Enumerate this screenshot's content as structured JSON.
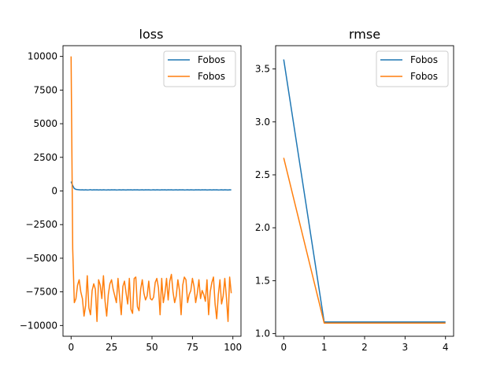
{
  "chart_data": [
    {
      "type": "line",
      "title": "loss",
      "xlabel": "",
      "ylabel": "",
      "xlim": [
        -5,
        105
      ],
      "ylim": [
        -10800,
        10800
      ],
      "xticks": [
        0,
        25,
        50,
        75,
        100
      ],
      "xtick_labels": [
        "0",
        "25",
        "50",
        "75",
        "100"
      ],
      "yticks": [
        -10000,
        -7500,
        -5000,
        -2500,
        0,
        2500,
        5000,
        7500,
        10000
      ],
      "ytick_labels": [
        "−10000",
        "−7500",
        "−5000",
        "−2500",
        "0",
        "2500",
        "5000",
        "7500",
        "10000"
      ],
      "grid": false,
      "legend_position": "top-right",
      "series": [
        {
          "name": "Fobos",
          "color": "#1f77b4",
          "x": [
            0,
            1,
            2,
            3,
            4,
            5,
            6,
            7,
            8,
            9,
            10,
            11,
            12,
            13,
            14,
            15,
            16,
            17,
            18,
            19,
            20,
            21,
            22,
            23,
            24,
            25,
            26,
            27,
            28,
            29,
            30,
            31,
            32,
            33,
            34,
            35,
            36,
            37,
            38,
            39,
            40,
            41,
            42,
            43,
            44,
            45,
            46,
            47,
            48,
            49,
            50,
            51,
            52,
            53,
            54,
            55,
            56,
            57,
            58,
            59,
            60,
            61,
            62,
            63,
            64,
            65,
            66,
            67,
            68,
            69,
            70,
            71,
            72,
            73,
            74,
            75,
            76,
            77,
            78,
            79,
            80,
            81,
            82,
            83,
            84,
            85,
            86,
            87,
            88,
            89,
            90,
            91,
            92,
            93,
            94,
            95,
            96,
            97,
            98,
            99
          ],
          "y": [
            700,
            400,
            180,
            120,
            100,
            90,
            80,
            85,
            70,
            90,
            75,
            80,
            95,
            70,
            85,
            80,
            90,
            75,
            85,
            70,
            90,
            80,
            75,
            85,
            70,
            90,
            80,
            85,
            75,
            80,
            90,
            70,
            85,
            80,
            75,
            90,
            80,
            85,
            70,
            85,
            80,
            90,
            75,
            80,
            85,
            70,
            90,
            80,
            85,
            75,
            80,
            90,
            70,
            85,
            80,
            75,
            90,
            80,
            85,
            70,
            85,
            80,
            90,
            75,
            80,
            85,
            70,
            90,
            80,
            85,
            75,
            80,
            90,
            70,
            85,
            80,
            75,
            90,
            80,
            85,
            70,
            85,
            80,
            90,
            75,
            80,
            85,
            70,
            90,
            80,
            85,
            75,
            80,
            90,
            70,
            85,
            80,
            75,
            90,
            80
          ]
        },
        {
          "name": "Fobos",
          "color": "#ff7f0e",
          "x": [
            0,
            1,
            2,
            3,
            4,
            5,
            6,
            7,
            8,
            9,
            10,
            11,
            12,
            13,
            14,
            15,
            16,
            17,
            18,
            19,
            20,
            21,
            22,
            23,
            24,
            25,
            26,
            27,
            28,
            29,
            30,
            31,
            32,
            33,
            34,
            35,
            36,
            37,
            38,
            39,
            40,
            41,
            42,
            43,
            44,
            45,
            46,
            47,
            48,
            49,
            50,
            51,
            52,
            53,
            54,
            55,
            56,
            57,
            58,
            59,
            60,
            61,
            62,
            63,
            64,
            65,
            66,
            67,
            68,
            69,
            70,
            71,
            72,
            73,
            74,
            75,
            76,
            77,
            78,
            79,
            80,
            81,
            82,
            83,
            84,
            85,
            86,
            87,
            88,
            89,
            90,
            91,
            92,
            93,
            94,
            95,
            96,
            97,
            98,
            99
          ],
          "y": [
            10000,
            -4300,
            -8300,
            -8000,
            -7000,
            -6600,
            -7500,
            -8000,
            -9300,
            -8500,
            -6300,
            -8700,
            -9200,
            -7400,
            -6900,
            -7300,
            -9700,
            -6600,
            -7000,
            -8000,
            -6300,
            -8200,
            -9300,
            -7700,
            -6900,
            -6600,
            -7300,
            -7800,
            -8300,
            -6500,
            -7900,
            -9200,
            -7100,
            -6700,
            -7600,
            -8400,
            -6500,
            -8800,
            -9100,
            -6500,
            -6400,
            -8600,
            -8900,
            -7300,
            -6600,
            -7600,
            -8100,
            -7800,
            -6700,
            -8000,
            -8100,
            -7900,
            -6800,
            -6500,
            -7200,
            -9200,
            -6500,
            -8300,
            -7600,
            -6500,
            -8100,
            -6700,
            -6200,
            -7500,
            -8300,
            -7800,
            -6600,
            -7400,
            -9200,
            -7000,
            -6400,
            -6600,
            -8300,
            -7700,
            -7400,
            -6500,
            -7100,
            -8300,
            -7600,
            -6600,
            -8000,
            -7400,
            -7700,
            -8200,
            -6600,
            -9200,
            -7500,
            -6800,
            -6400,
            -8400,
            -9500,
            -7700,
            -6600,
            -8400,
            -7800,
            -6500,
            -7900,
            -9700,
            -6400,
            -7600
          ]
        }
      ]
    },
    {
      "type": "line",
      "title": "rmse",
      "xlabel": "",
      "ylabel": "",
      "xlim": [
        -0.2,
        4.2
      ],
      "ylim": [
        0.975,
        3.72
      ],
      "xticks": [
        0,
        1,
        2,
        3,
        4
      ],
      "xtick_labels": [
        "0",
        "1",
        "2",
        "3",
        "4"
      ],
      "yticks": [
        1.0,
        1.5,
        2.0,
        2.5,
        3.0,
        3.5
      ],
      "ytick_labels": [
        "1.0",
        "1.5",
        "2.0",
        "2.5",
        "3.0",
        "3.5"
      ],
      "grid": false,
      "legend_position": "top-right",
      "series": [
        {
          "name": "Fobos",
          "color": "#1f77b4",
          "x": [
            0,
            1,
            2,
            3,
            4
          ],
          "y": [
            3.59,
            1.11,
            1.11,
            1.11,
            1.11
          ]
        },
        {
          "name": "Fobos",
          "color": "#ff7f0e",
          "x": [
            0,
            1,
            2,
            3,
            4
          ],
          "y": [
            2.66,
            1.1,
            1.1,
            1.1,
            1.1
          ]
        }
      ]
    }
  ]
}
